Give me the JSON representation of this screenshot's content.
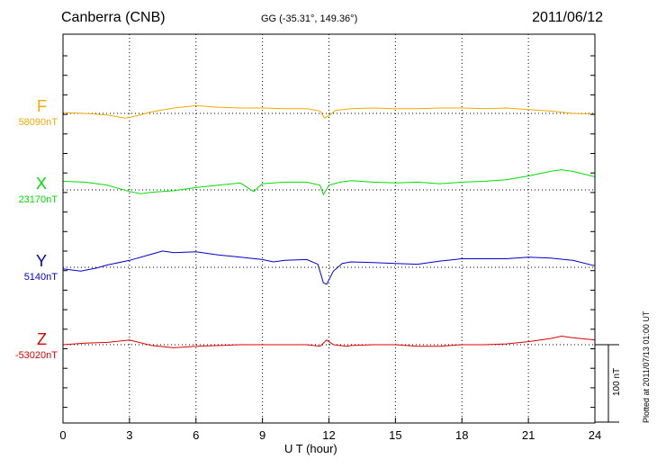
{
  "header": {
    "station": "Canberra (CNB)",
    "coords": "GG (-35.31°, 149.36°)",
    "date": "2011/06/12"
  },
  "footer": {
    "plotted": "Plotted at 2011/07/13 01:00 UT",
    "scale_label": "100 nT"
  },
  "chart_data": {
    "type": "line",
    "xlabel": "U T (hour)",
    "xlim": [
      0,
      24
    ],
    "xticks": [
      0,
      3,
      6,
      9,
      12,
      15,
      18,
      21,
      24
    ],
    "scale_nT": 100,
    "grid": true,
    "series": [
      {
        "name": "F",
        "baseline_label": "58090nT",
        "baseline_nT": 58090,
        "color": "#f5a800",
        "x": [
          0,
          1,
          2,
          2.8,
          3.2,
          4,
          5,
          6,
          7,
          8,
          9,
          10,
          11,
          11.6,
          11.8,
          12,
          12.3,
          13,
          14,
          15,
          16,
          17,
          18,
          19,
          20,
          21,
          22,
          23,
          24
        ],
        "y": [
          58091,
          58090,
          58088,
          58084,
          58086,
          58092,
          58097,
          58100,
          58098,
          58097,
          58097,
          58096,
          58096,
          58093,
          58084,
          58087,
          58094,
          58096,
          58097,
          58096,
          58096,
          58097,
          58097,
          58096,
          58097,
          58095,
          58093,
          58090,
          58089
        ]
      },
      {
        "name": "X",
        "baseline_label": "23170nT",
        "baseline_nT": 23170,
        "color": "#00e000",
        "x": [
          0,
          1,
          2,
          3,
          3.5,
          4,
          5,
          6,
          7,
          8,
          8.6,
          9,
          10,
          11,
          11.6,
          11.75,
          12,
          12.5,
          13,
          14,
          15,
          16,
          17,
          18,
          19,
          20,
          21,
          22,
          22.5,
          23,
          24
        ],
        "y": [
          23181,
          23180,
          23176,
          23168,
          23165,
          23167,
          23169,
          23173,
          23176,
          23179,
          23168,
          23178,
          23180,
          23180,
          23176,
          23164,
          23176,
          23180,
          23182,
          23180,
          23179,
          23180,
          23178,
          23180,
          23181,
          23183,
          23188,
          23194,
          23196,
          23194,
          23187
        ]
      },
      {
        "name": "Y",
        "baseline_label": "5140nT",
        "baseline_nT": 5140,
        "color": "#0000cc",
        "x": [
          0,
          0.8,
          1.5,
          2,
          3,
          4,
          4.5,
          5,
          6,
          7,
          8,
          9,
          9.5,
          10,
          11,
          11.5,
          11.75,
          11.9,
          12.2,
          12.6,
          13,
          14,
          15,
          16,
          17,
          18,
          19,
          20,
          21,
          22,
          23,
          24
        ],
        "y": [
          5138,
          5135,
          5139,
          5143,
          5149,
          5157,
          5161,
          5159,
          5160,
          5156,
          5153,
          5150,
          5147,
          5149,
          5150,
          5144,
          5120,
          5118,
          5135,
          5145,
          5147,
          5146,
          5145,
          5144,
          5148,
          5151,
          5151,
          5151,
          5153,
          5152,
          5149,
          5142
        ]
      },
      {
        "name": "Z",
        "baseline_label": "-53020nT",
        "baseline_nT": -53020,
        "color": "#dd0000",
        "x": [
          0,
          1,
          2,
          3,
          4,
          5,
          6,
          7,
          8,
          9,
          10,
          11,
          11.6,
          11.9,
          12.2,
          12.8,
          13,
          14,
          15,
          16,
          17,
          18,
          19,
          20,
          21,
          22,
          22.5,
          23,
          24
        ],
        "y": [
          -53020,
          -53018,
          -53017,
          -53014,
          -53021,
          -53024,
          -53022,
          -53021,
          -53020,
          -53020,
          -53020,
          -53020,
          -53022,
          -53014,
          -53020,
          -53022,
          -53021,
          -53020,
          -53020,
          -53022,
          -53022,
          -53020,
          -53020,
          -53019,
          -53016,
          -53012,
          -53009,
          -53011,
          -53014
        ]
      }
    ]
  }
}
